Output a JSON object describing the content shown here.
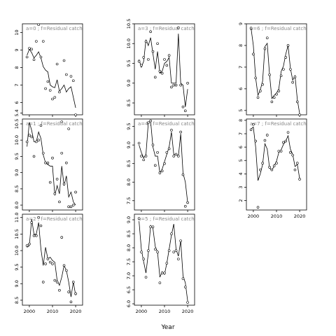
{
  "figure": {
    "xlabel": "Year"
  },
  "chart_data": [
    {
      "type": "scatter",
      "title": "a=0 ; f=Residual catch",
      "xlim": [
        1997,
        2023
      ],
      "ylim": [
        5.3,
        10.5
      ],
      "yticks": [
        5.4,
        6,
        7,
        8,
        9,
        10
      ],
      "ytick_labels": [
        "5.4",
        "6",
        "7",
        "8",
        "9",
        "10"
      ],
      "xticks": [
        2000,
        2010,
        2020
      ],
      "xtick_labels": [
        "2000",
        "2010",
        "2020"
      ],
      "show_xticks": false,
      "x": [
        1999,
        2000,
        2001,
        2002,
        2003,
        2004,
        2005,
        2006,
        2007,
        2008,
        2009,
        2010,
        2011,
        2012,
        2013,
        2014,
        2015,
        2016,
        2017,
        2018,
        2019,
        2020
      ],
      "points": [
        8.6,
        9.1,
        9.05,
        8.45,
        9.5,
        10.45,
        8.6,
        9.5,
        6.8,
        7.2,
        6.7,
        6.2,
        6.3,
        8.2,
        6.6,
        4.9,
        8.4,
        7.6,
        4.5,
        7.5,
        7.25,
        5.3
      ],
      "line": [
        8.7,
        9.05,
        8.85,
        8.55,
        8.7,
        8.9,
        8.55,
        8.05,
        7.85,
        7.75,
        7.0,
        6.9,
        6.85,
        7.3,
        6.65,
        6.8,
        7.0,
        6.6,
        6.8,
        6.9,
        6.3,
        5.7
      ]
    },
    {
      "type": "scatter",
      "title": "a=1 ; f=Residual catch",
      "xlim": [
        1997,
        2023
      ],
      "ylim": [
        7.85,
        10.65
      ],
      "yticks": [
        8.0,
        8.5,
        9.0,
        9.5,
        10.0,
        10.5
      ],
      "ytick_labels": [
        "8.0",
        "8.5",
        "9.0",
        "9.5",
        "10.0",
        "10.5"
      ],
      "xticks": [
        2000,
        2010,
        2020
      ],
      "xtick_labels": [
        "2000",
        "2010",
        "2020"
      ],
      "show_xticks": false,
      "x": [
        1999,
        2000,
        2001,
        2002,
        2003,
        2004,
        2005,
        2006,
        2007,
        2008,
        2009,
        2010,
        2011,
        2012,
        2013,
        2014,
        2015,
        2016,
        2017,
        2018,
        2019,
        2020
      ],
      "points": [
        9.95,
        10.15,
        10.1,
        9.5,
        9.95,
        10.0,
        10.45,
        9.6,
        9.3,
        9.3,
        8.7,
        9.45,
        8.35,
        8.8,
        8.1,
        9.6,
        8.65,
        9.3,
        7.95,
        7.95,
        8.0,
        8.4
      ],
      "line": [
        9.8,
        10.55,
        10.3,
        9.95,
        9.95,
        10.25,
        10.05,
        9.55,
        9.3,
        9.25,
        9.2,
        9.2,
        8.3,
        8.6,
        8.35,
        9.2,
        8.6,
        8.9,
        8.25,
        8.4,
        8.1,
        8.0
      ]
    },
    {
      "type": "scatter",
      "title": "a=2 ; f=Residual catch",
      "xlim": [
        1997,
        2023
      ],
      "ylim": [
        8.35,
        11.1
      ],
      "yticks": [
        8.5,
        9.0,
        9.5,
        10.0,
        10.5,
        11.0
      ],
      "ytick_labels": [
        "8.5",
        "9.0",
        "9.5",
        "10.0",
        "10.5",
        "11.0"
      ],
      "xticks": [
        2000,
        2010,
        2020
      ],
      "xtick_labels": [
        "2000",
        "2010",
        "2020"
      ],
      "show_xticks": true,
      "x": [
        1999,
        2000,
        2001,
        2002,
        2003,
        2004,
        2005,
        2006,
        2007,
        2008,
        2009,
        2010,
        2011,
        2012,
        2013,
        2014,
        2015,
        2016,
        2017,
        2018,
        2019,
        2020
      ],
      "points": [
        10.15,
        10.2,
        10.85,
        10.45,
        10.45,
        11.0,
        10.75,
        9.05,
        9.6,
        9.75,
        9.65,
        9.6,
        9.1,
        9.05,
        8.8,
        10.4,
        9.55,
        9.4,
        8.75,
        8.45,
        9.05,
        8.7
      ],
      "line": [
        10.1,
        10.15,
        10.95,
        10.5,
        10.5,
        10.85,
        10.05,
        9.55,
        10.1,
        9.75,
        9.8,
        9.7,
        9.65,
        9.1,
        8.95,
        9.2,
        9.55,
        9.4,
        9.05,
        8.6,
        9.05,
        8.65
      ]
    },
    {
      "type": "scatter",
      "title": "a=3 ; f=Residual catch",
      "xlim": [
        1997,
        2023
      ],
      "ylim": [
        8.2,
        10.5
      ],
      "yticks": [
        8.5,
        9.0,
        9.5,
        10.0,
        10.5
      ],
      "ytick_labels": [
        "8.5",
        "9.0",
        "9.5",
        "10.0",
        "10.5"
      ],
      "xticks": [
        2000,
        2010,
        2020
      ],
      "xtick_labels": [
        "2000",
        "2010",
        "2020"
      ],
      "show_xticks": false,
      "x": [
        1999,
        2000,
        2001,
        2002,
        2003,
        2004,
        2005,
        2006,
        2007,
        2008,
        2009,
        2010,
        2011,
        2012,
        2013,
        2014,
        2015,
        2016,
        2017,
        2018,
        2019,
        2020
      ],
      "points": [
        9.55,
        9.45,
        9.65,
        10.05,
        9.6,
        10.3,
        9.8,
        9.15,
        10.0,
        9.3,
        9.25,
        9.6,
        9.45,
        9.7,
        8.9,
        8.95,
        8.95,
        10.4,
        8.95,
        8.4,
        8.3,
        9.0
      ],
      "line": [
        9.6,
        9.4,
        9.55,
        10.1,
        9.95,
        10.15,
        9.75,
        9.35,
        9.8,
        9.25,
        9.3,
        9.5,
        9.55,
        9.65,
        9.0,
        9.0,
        9.0,
        10.25,
        9.0,
        8.95,
        8.4,
        8.85
      ]
    },
    {
      "type": "scatter",
      "title": "a=4 ; f=Residual catch",
      "xlim": [
        1997,
        2023
      ],
      "ylim": [
        7.25,
        9.7
      ],
      "yticks": [
        7.5,
        8.0,
        8.5,
        9.0,
        9.5
      ],
      "ytick_labels": [
        "7.5",
        "8.0",
        "8.5",
        "9.0",
        "9.5"
      ],
      "xticks": [
        2000,
        2010,
        2020
      ],
      "xtick_labels": [
        "2000",
        "2010",
        "2020"
      ],
      "show_xticks": false,
      "x": [
        1999,
        2000,
        2001,
        2002,
        2003,
        2004,
        2005,
        2006,
        2007,
        2008,
        2009,
        2010,
        2011,
        2012,
        2013,
        2014,
        2015,
        2016,
        2017,
        2018,
        2019,
        2020
      ],
      "points": [
        9.05,
        8.7,
        8.6,
        8.7,
        9.6,
        9.65,
        9.0,
        8.45,
        8.8,
        8.25,
        8.3,
        8.5,
        8.8,
        8.9,
        9.4,
        8.7,
        8.75,
        8.7,
        9.35,
        8.2,
        7.35,
        7.45
      ],
      "line": [
        9.0,
        8.8,
        8.65,
        8.75,
        9.6,
        9.65,
        8.95,
        8.7,
        8.7,
        8.25,
        8.35,
        8.55,
        8.75,
        8.95,
        9.35,
        8.75,
        8.75,
        8.7,
        9.3,
        8.25,
        8.0,
        7.45
      ]
    },
    {
      "type": "scatter",
      "title": "a=5 ; f=Residual catch",
      "xlim": [
        1997,
        2023
      ],
      "ylim": [
        5.95,
        9.2
      ],
      "yticks": [
        6.0,
        6.5,
        7.0,
        7.5,
        8.0,
        8.5,
        9.0
      ],
      "ytick_labels": [
        "6.0",
        "6.5",
        "7.0",
        "7.5",
        "8.0",
        "8.5",
        "9.0"
      ],
      "xticks": [
        2000,
        2010,
        2020
      ],
      "xtick_labels": [
        "2000",
        "2010",
        "2020"
      ],
      "show_xticks": true,
      "x": [
        1999,
        2000,
        2001,
        2002,
        2003,
        2004,
        2005,
        2006,
        2007,
        2008,
        2009,
        2010,
        2011,
        2012,
        2013,
        2014,
        2015,
        2016,
        2017,
        2018,
        2019,
        2020
      ],
      "points": [
        9.05,
        7.85,
        7.6,
        6.95,
        7.9,
        8.75,
        8.75,
        7.95,
        7.85,
        6.75,
        7.1,
        7.1,
        7.45,
        7.9,
        8.5,
        7.85,
        7.9,
        7.6,
        8.25,
        6.9,
        6.6,
        6.05
      ],
      "line": [
        8.95,
        7.95,
        7.5,
        7.1,
        7.8,
        8.8,
        8.7,
        8.05,
        7.85,
        6.95,
        7.15,
        7.05,
        7.45,
        7.95,
        8.45,
        8.85,
        7.95,
        7.7,
        8.25,
        7.0,
        6.75,
        6.1
      ]
    },
    {
      "type": "scatter",
      "title": "a=6 ; f=Residual catch",
      "xlim": [
        1997,
        2023
      ],
      "ylim": [
        4.8,
        9.0
      ],
      "yticks": [
        5,
        6,
        7,
        8,
        9
      ],
      "ytick_labels": [
        "5",
        "6",
        "7",
        "8",
        "9"
      ],
      "xticks": [
        2000,
        2010,
        2020
      ],
      "xtick_labels": [
        "2000",
        "2010",
        "2020"
      ],
      "show_xticks": false,
      "x": [
        1999,
        2000,
        2001,
        2002,
        2003,
        2004,
        2005,
        2006,
        2007,
        2008,
        2009,
        2010,
        2011,
        2012,
        2013,
        2014,
        2015,
        2016,
        2017,
        2018,
        2019,
        2020
      ],
      "points": [
        8.8,
        7.6,
        6.5,
        5.6,
        5.9,
        6.2,
        7.85,
        8.35,
        6.65,
        5.4,
        5.6,
        5.75,
        5.9,
        6.6,
        6.9,
        7.45,
        8.0,
        6.9,
        6.3,
        6.55,
        5.4,
        4.8
      ],
      "line": [
        8.8,
        8.0,
        6.5,
        5.7,
        5.95,
        6.35,
        7.95,
        8.1,
        6.65,
        5.55,
        5.7,
        5.8,
        6.0,
        6.8,
        7.05,
        7.6,
        8.0,
        6.95,
        6.4,
        6.6,
        5.5,
        4.85
      ]
    },
    {
      "type": "scatter",
      "title": "a=7 ; f=Residual catch",
      "xlim": [
        1997,
        2023
      ],
      "ylim": [
        1.3,
        8.1
      ],
      "yticks": [
        2,
        3,
        4,
        5,
        6,
        7,
        8
      ],
      "ytick_labels": [
        "2",
        "3",
        "4",
        "5",
        "6",
        "7",
        "8"
      ],
      "xticks": [
        2000,
        2010,
        2020
      ],
      "xtick_labels": [
        "2000",
        "2010",
        "2020"
      ],
      "show_xticks": true,
      "x": [
        1999,
        2000,
        2001,
        2002,
        2003,
        2004,
        2005,
        2006,
        2007,
        2008,
        2009,
        2010,
        2011,
        2012,
        2013,
        2014,
        2015,
        2016,
        2017,
        2018,
        2019,
        2020
      ],
      "points": [
        7.3,
        7.7,
        6.45,
        1.5,
        4.3,
        4.8,
        6.5,
        6.9,
        4.5,
        4.3,
        4.6,
        4.8,
        5.7,
        5.7,
        6.35,
        6.45,
        7.1,
        5.6,
        5.4,
        4.3,
        4.8,
        3.6
      ],
      "line": [
        7.35,
        7.5,
        6.0,
        3.5,
        4.0,
        4.7,
        6.25,
        5.85,
        4.45,
        4.25,
        4.6,
        4.95,
        5.6,
        5.8,
        6.2,
        6.45,
        6.85,
        5.85,
        5.45,
        4.55,
        4.7,
        3.65
      ]
    }
  ]
}
